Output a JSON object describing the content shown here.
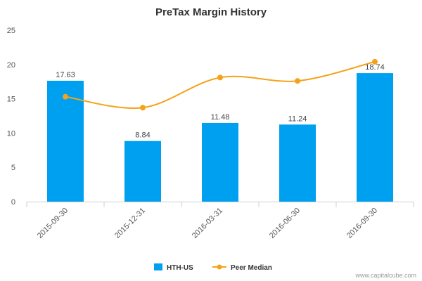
{
  "chart_data": {
    "type": "bar",
    "title": "PreTax Margin History",
    "categories": [
      "2015-09-30",
      "2015-12-31",
      "2016-03-31",
      "2016-06-30",
      "2016-09-30"
    ],
    "series": [
      {
        "name": "HTH-US",
        "type": "bar",
        "color": "#00a0f0",
        "values": [
          17.63,
          8.84,
          11.48,
          11.24,
          18.74
        ],
        "labels": [
          "17.63",
          "8.84",
          "11.48",
          "11.24",
          "18.74"
        ]
      },
      {
        "name": "Peer Median",
        "type": "line",
        "color": "#f5a21a",
        "values": [
          15.3,
          13.7,
          18.1,
          17.6,
          20.4
        ]
      }
    ],
    "ylim": [
      0,
      25
    ],
    "yticks": [
      "0",
      "5",
      "10",
      "15",
      "20",
      "25"
    ],
    "grid": false,
    "legend": "bottom-center"
  },
  "credit": "www.capitalcube.com"
}
